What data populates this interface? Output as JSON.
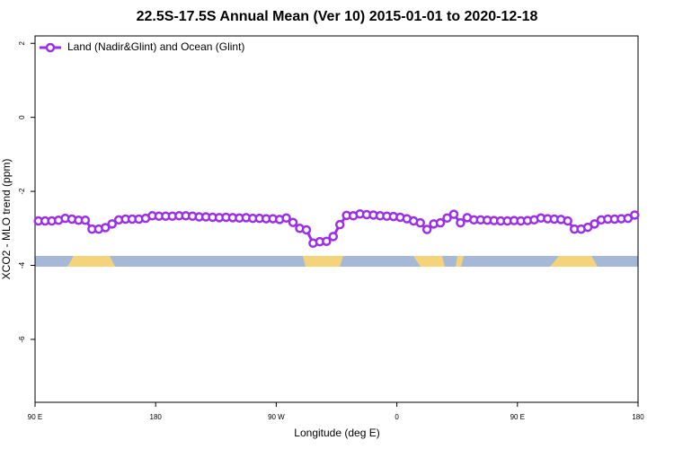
{
  "chart_data": {
    "type": "line",
    "title": "22.5S-17.5S Annual Mean (Ver 10)   2015-01-01 to 2020-12-18",
    "xlabel": "Longitude (deg E)",
    "ylabel": "XCO2 - MLO trend (ppm)",
    "legend_position": "top-left",
    "xlim": [
      90,
      540
    ],
    "ylim": [
      -7.7,
      2.2
    ],
    "xticks": [
      {
        "value": 90,
        "label": "90 E"
      },
      180,
      {
        "value": 270,
        "label": "90 W"
      },
      {
        "value": 360,
        "label": "0"
      },
      {
        "value": 450,
        "label": "90 E"
      },
      {
        "value": 540,
        "label": "180"
      }
    ],
    "yticks": [
      2,
      0,
      -2,
      -4,
      -6
    ],
    "x": [
      92.5,
      97.5,
      102.5,
      107.5,
      112.5,
      117.5,
      122.5,
      127.5,
      132.5,
      137.5,
      142.5,
      147.5,
      152.5,
      157.5,
      162.5,
      167.5,
      172.5,
      177.5,
      182.5,
      187.5,
      192.5,
      197.5,
      202.5,
      207.5,
      212.5,
      217.5,
      222.5,
      227.5,
      232.5,
      237.5,
      242.5,
      247.5,
      252.5,
      257.5,
      262.5,
      267.5,
      272.5,
      277.5,
      282.5,
      287.5,
      292.5,
      297.5,
      302.5,
      307.5,
      312.5,
      317.5,
      322.5,
      327.5,
      332.5,
      337.5,
      342.5,
      347.5,
      352.5,
      357.5,
      362.5,
      367.5,
      372.5,
      377.5,
      382.5,
      387.5,
      392.5,
      397.5,
      402.5,
      407.5,
      412.5,
      417.5,
      422.5,
      427.5,
      432.5,
      437.5,
      442.5,
      447.5,
      452.5,
      457.5,
      462.5,
      467.5,
      472.5,
      477.5,
      482.5,
      487.5,
      492.5,
      497.5,
      502.5,
      507.5,
      512.5,
      517.5,
      522.5,
      527.5,
      532.5,
      537.5
    ],
    "series": [
      {
        "name": "Land (Nadir&Glint) and Ocean (Glint)",
        "color": "#9b30e8",
        "values": [
          -2.8,
          -2.8,
          -2.8,
          -2.78,
          -2.73,
          -2.75,
          -2.78,
          -2.78,
          -3.02,
          -3.02,
          -2.98,
          -2.88,
          -2.77,
          -2.75,
          -2.75,
          -2.75,
          -2.73,
          -2.66,
          -2.67,
          -2.67,
          -2.67,
          -2.66,
          -2.66,
          -2.67,
          -2.69,
          -2.69,
          -2.7,
          -2.71,
          -2.7,
          -2.71,
          -2.72,
          -2.71,
          -2.73,
          -2.73,
          -2.74,
          -2.74,
          -2.76,
          -2.72,
          -2.84,
          -3.0,
          -3.04,
          -3.4,
          -3.36,
          -3.35,
          -3.22,
          -2.9,
          -2.65,
          -2.66,
          -2.61,
          -2.63,
          -2.64,
          -2.66,
          -2.67,
          -2.68,
          -2.7,
          -2.74,
          -2.8,
          -2.85,
          -3.03,
          -2.88,
          -2.85,
          -2.72,
          -2.62,
          -2.85,
          -2.71,
          -2.77,
          -2.77,
          -2.78,
          -2.79,
          -2.8,
          -2.8,
          -2.79,
          -2.8,
          -2.79,
          -2.77,
          -2.72,
          -2.74,
          -2.75,
          -2.76,
          -2.8,
          -3.02,
          -3.02,
          -2.97,
          -2.88,
          -2.77,
          -2.75,
          -2.75,
          -2.74,
          -2.73,
          -2.64
        ]
      }
    ]
  }
}
